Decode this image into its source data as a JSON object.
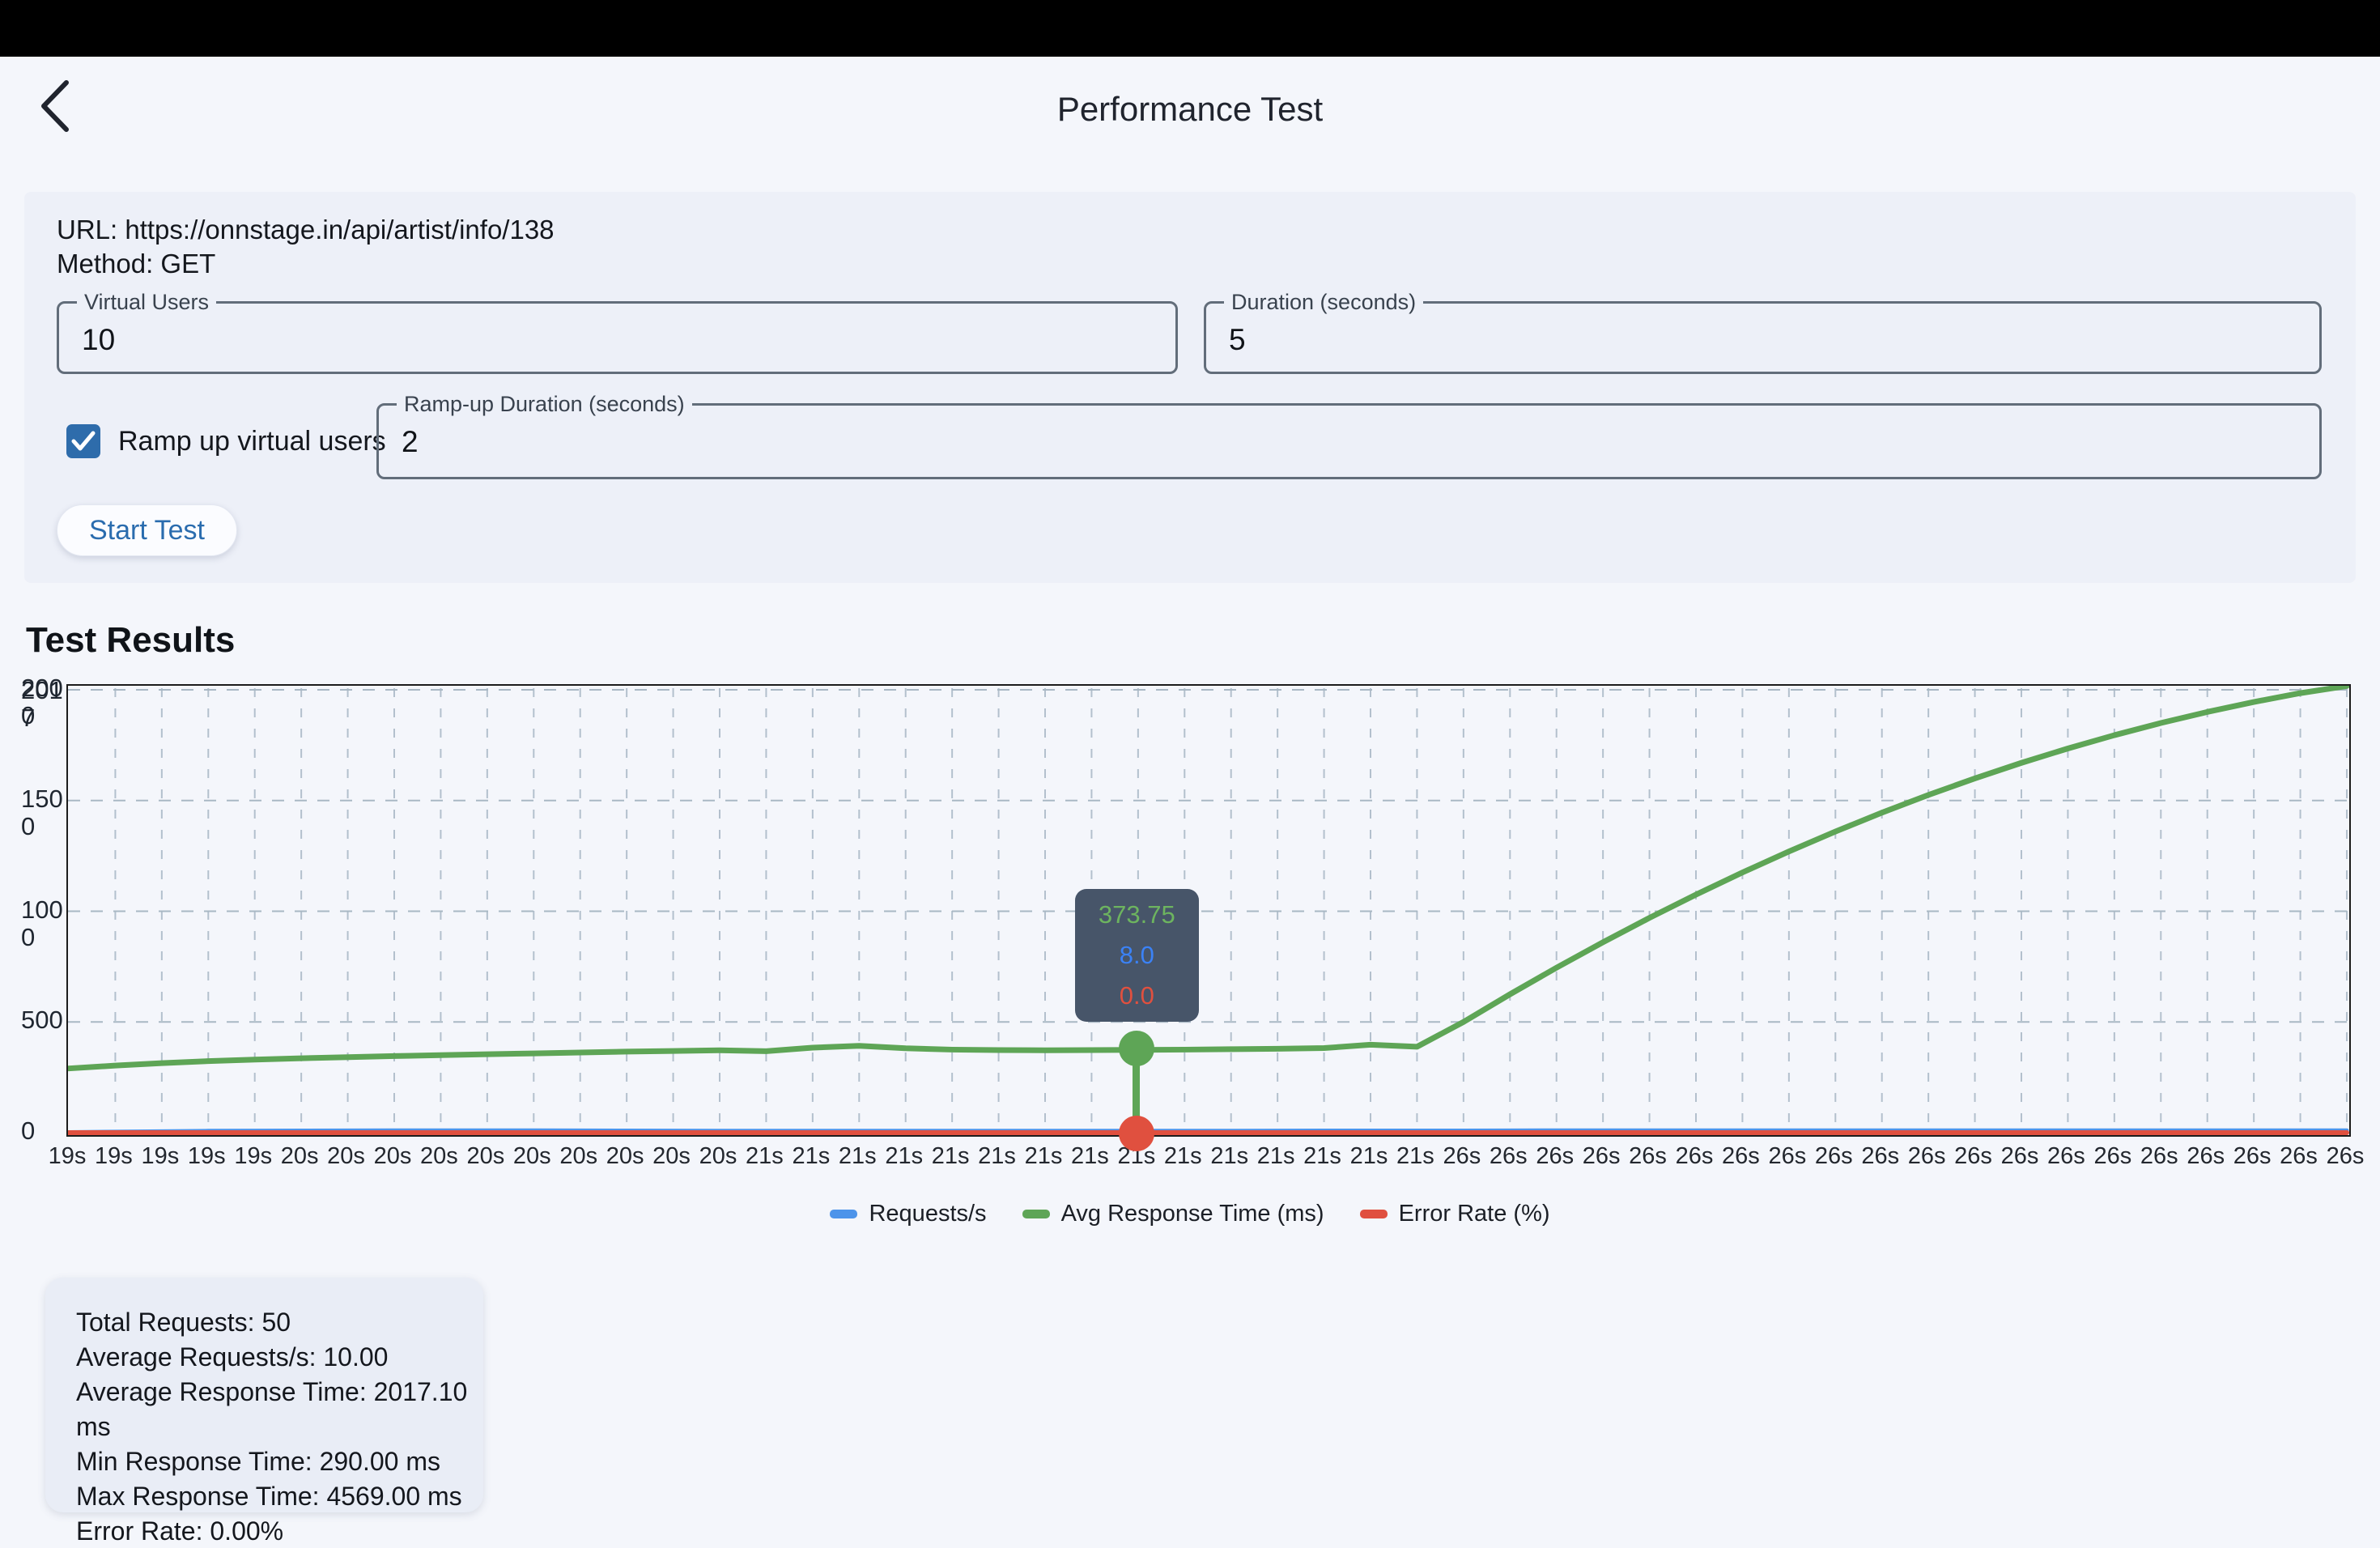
{
  "header": {
    "title": "Performance Test"
  },
  "form": {
    "url_line": "URL: https://onnstage.in/api/artist/info/138",
    "method_line": "Method: GET",
    "fields": {
      "virtual_users": {
        "label": "Virtual Users",
        "value": "10"
      },
      "duration": {
        "label": "Duration (seconds)",
        "value": "5"
      },
      "ramp_up_duration": {
        "label": "Ramp-up Duration (seconds)",
        "value": "2"
      }
    },
    "ramp_up_checkbox": {
      "label": "Ramp up virtual users",
      "checked": true
    },
    "start_button_label": "Start Test"
  },
  "results": {
    "heading": "Test Results",
    "summary_lines": [
      "Total Requests: 50",
      "Average Requests/s: 10.00",
      "Average Response Time: 2017.10 ms",
      "Min Response Time: 290.00 ms",
      "Max Response Time: 4569.00 ms",
      "Error Rate: 0.00%"
    ]
  },
  "chart_data": {
    "type": "line",
    "ylim": [
      0,
      2000
    ],
    "grid": true,
    "y_axis_labels": [
      "2000",
      "1500",
      "1000",
      "500",
      "0"
    ],
    "y_axis_overlap_label": "2017",
    "x_labels": [
      "19s",
      "19s",
      "19s",
      "19s",
      "19s",
      "20s",
      "20s",
      "20s",
      "20s",
      "20s",
      "20s",
      "20s",
      "20s",
      "20s",
      "20s",
      "21s",
      "21s",
      "21s",
      "21s",
      "21s",
      "21s",
      "21s",
      "21s",
      "21s",
      "21s",
      "21s",
      "21s",
      "21s",
      "21s",
      "21s",
      "26s",
      "26s",
      "26s",
      "26s",
      "26s",
      "26s",
      "26s",
      "26s",
      "26s",
      "26s",
      "26s",
      "26s",
      "26s",
      "26s",
      "26s",
      "26s",
      "26s",
      "26s",
      "26s",
      "26s"
    ],
    "series": [
      {
        "name": "Requests/s",
        "color": "#4d94ea",
        "values": [
          2,
          4,
          6,
          8,
          8.5,
          9,
          9.5,
          10,
          10,
          10,
          10,
          9.5,
          9,
          8.5,
          8,
          8,
          8,
          8,
          8,
          8,
          8,
          8,
          8,
          8,
          8,
          8,
          8.5,
          9,
          9,
          9,
          9,
          9.5,
          10,
          10,
          10,
          10,
          10,
          10,
          10,
          10,
          10,
          10,
          10,
          10,
          10,
          10,
          10,
          10,
          10,
          10
        ]
      },
      {
        "name": "Avg Response Time (ms)",
        "color": "#5ea556",
        "values": [
          290,
          303,
          314,
          323,
          330,
          336,
          341,
          346,
          350,
          354,
          358,
          362,
          366,
          369,
          372,
          368,
          384,
          392,
          381,
          375,
          373,
          372,
          373,
          373.75,
          375,
          377,
          379,
          382,
          397,
          388,
          500,
          625,
          745,
          860,
          970,
          1075,
          1175,
          1270,
          1360,
          1445,
          1525,
          1600,
          1670,
          1735,
          1795,
          1850,
          1900,
          1945,
          1985,
          2017
        ]
      },
      {
        "name": "Error Rate (%)",
        "color": "#e0503f",
        "values": [
          0,
          0,
          0,
          0,
          0,
          0,
          0,
          0,
          0,
          0,
          0,
          0,
          0,
          0,
          0,
          0,
          0,
          0,
          0,
          0,
          0,
          0,
          0,
          0,
          0,
          0,
          0,
          0,
          0,
          0,
          0,
          0,
          0,
          0,
          0,
          0,
          0,
          0,
          0,
          0,
          0,
          0,
          0,
          0,
          0,
          0,
          0,
          0,
          0,
          0
        ]
      }
    ],
    "legend": [
      {
        "label": "Requests/s",
        "color": "#4d94ea"
      },
      {
        "label": "Avg Response Time (ms)",
        "color": "#5ea556"
      },
      {
        "label": "Error Rate (%)",
        "color": "#e0503f"
      }
    ],
    "tooltip": {
      "index": 24,
      "entries": [
        {
          "value": "373.75",
          "color": "#6db45f"
        },
        {
          "value": "8.0",
          "color": "#3b82f6"
        },
        {
          "value": "0.0",
          "color": "#e0503f"
        }
      ]
    }
  }
}
